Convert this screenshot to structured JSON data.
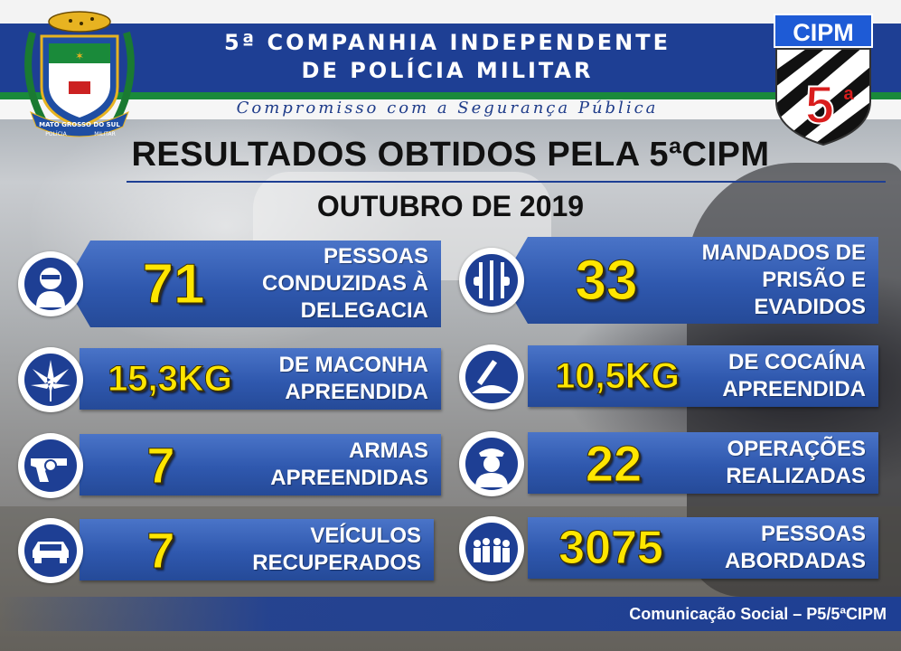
{
  "header": {
    "title_line1": "5ª COMPANHIA INDEPENDENTE",
    "title_line2": "DE POLÍCIA MILITAR",
    "slogan": "Compromisso com a Segurança Pública",
    "badge_top": "CIPM",
    "badge_number": "5",
    "badge_sup": "a",
    "crest_banner": "MATO GROSSO DO SUL",
    "crest_left": "POLÍCIA",
    "crest_right": "MILITAR"
  },
  "title": "RESULTADOS OBTIDOS PELA 5ªCIPM",
  "subtitle": "OUTUBRO DE 2019",
  "stats_left": [
    {
      "value": "71",
      "label_lines": [
        "PESSOAS",
        "CONDUZIDAS À",
        "DELEGACIA"
      ],
      "icon": "masked-person-icon"
    },
    {
      "value": "15,3KG",
      "label_lines": [
        "DE MACONHA",
        "APREENDIDA"
      ],
      "icon": "cannabis-leaf-icon"
    },
    {
      "value": "7",
      "label_lines": [
        "ARMAS",
        "APREENDIDAS"
      ],
      "icon": "revolver-icon"
    },
    {
      "value": "7",
      "label_lines": [
        "VEÍCULOS",
        "RECUPERADOS"
      ],
      "icon": "car-icon"
    }
  ],
  "stats_right": [
    {
      "value": "33",
      "label_lines": [
        "MANDADOS DE",
        "PRISÃO E",
        "EVADIDOS"
      ],
      "icon": "prison-bars-icon"
    },
    {
      "value": "10,5KG",
      "label_lines": [
        "DE COCAÍNA",
        "APREENDIDA"
      ],
      "icon": "cocaine-powder-icon"
    },
    {
      "value": "22",
      "label_lines": [
        "OPERAÇÕES",
        "REALIZADAS"
      ],
      "icon": "police-officer-icon"
    },
    {
      "value": "3075",
      "label_lines": [
        "PESSOAS",
        "ABORDADAS"
      ],
      "icon": "crowd-icon"
    }
  ],
  "footer": "Comunicação Social – P5/5ªCIPM",
  "colors": {
    "header_blue": "#1e3f94",
    "header_green": "#1a8a3a",
    "card_blue": "#2f58ae",
    "number_yellow": "#ffe600"
  }
}
